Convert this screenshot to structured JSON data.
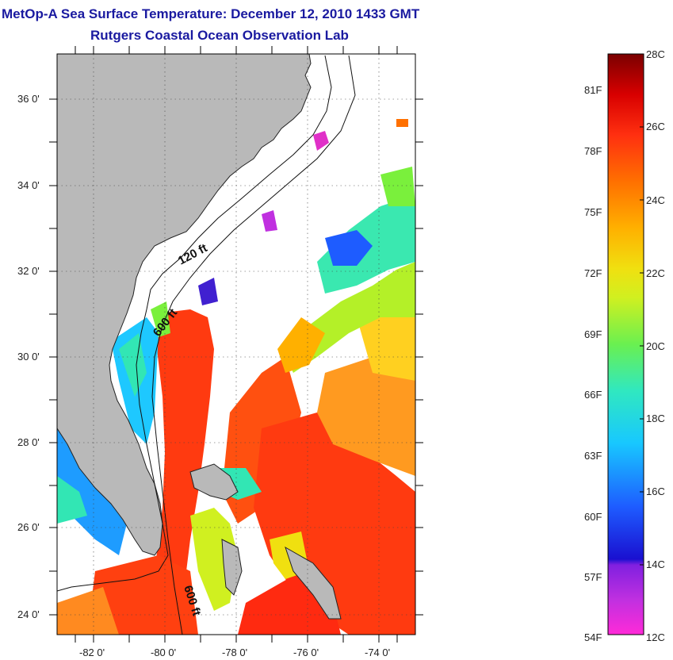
{
  "title": "MetOp-A Sea Surface Temperature:  December 12, 2010 1433 GMT",
  "subtitle": "Rutgers Coastal Ocean Observation Lab",
  "latitude_ticks": [
    "36 0'",
    "34 0'",
    "32 0'",
    "30 0'",
    "28 0'",
    "26 0'",
    "24 0'"
  ],
  "longitude_ticks": [
    "-82 0'",
    "-80 0'",
    "-78 0'",
    "-76 0'",
    "-74 0'"
  ],
  "isobath_labels": [
    "120 ft",
    "600 ft",
    "600 ft"
  ],
  "colorbar": {
    "celsius_ticks": [
      "28C",
      "26C",
      "24C",
      "22C",
      "20C",
      "18C",
      "16C",
      "14C",
      "12C"
    ],
    "fahrenheit_ticks": [
      "81F",
      "78F",
      "75F",
      "72F",
      "69F",
      "66F",
      "63F",
      "60F",
      "57F",
      "54F"
    ],
    "colors": [
      "#ff2ad8",
      "#a020f0",
      "#1a10d0",
      "#1e6cff",
      "#1ec8ff",
      "#32e6b4",
      "#7af03c",
      "#e8f020",
      "#ffb400",
      "#ff7800",
      "#ff2a10",
      "#e00000",
      "#800000"
    ]
  },
  "colors": {
    "land": "#b9b9b9",
    "ocean_cloud": "#ffffff",
    "title": "#1a1aa0",
    "gulf_stream": "#ff3a10"
  }
}
